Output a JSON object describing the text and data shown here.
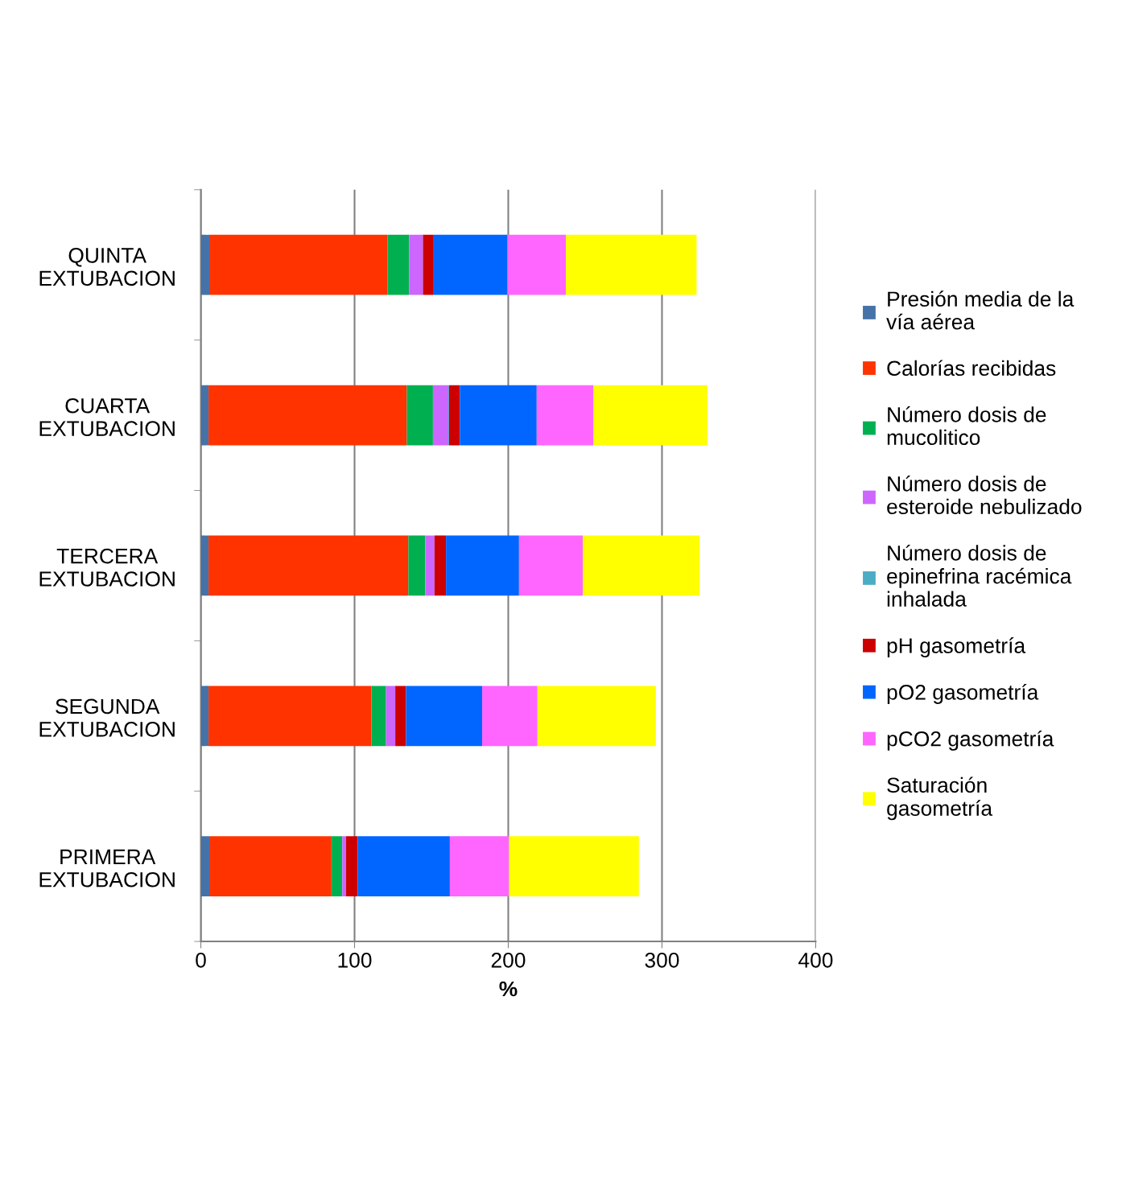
{
  "chart_data": {
    "type": "bar",
    "orientation": "horizontal",
    "stacked": true,
    "xlabel": "%",
    "categories": [
      "QUINTA\nEXTUBACION",
      "CUARTA\nEXTUBACION",
      "TERCERA\nEXTUBACION",
      "SEGUNDA\nEXTUBACION",
      "PRIMERA\nEXTUBACION"
    ],
    "series": [
      {
        "name": "Presión media de la\nvía aérea",
        "color": "#4572a7",
        "values": [
          5.5,
          5,
          5,
          5,
          5.5
        ]
      },
      {
        "name": "Calorías recibidas",
        "color": "#ff3300",
        "values": [
          116,
          129,
          130,
          106,
          79.5
        ]
      },
      {
        "name": "Número dosis de\nmucolitico",
        "color": "#00b050",
        "values": [
          14,
          17,
          11,
          9.5,
          7
        ]
      },
      {
        "name": "Número dosis de\nesteroide nebulizado",
        "color": "#cc66ff",
        "values": [
          9,
          10,
          6,
          6,
          2.5
        ]
      },
      {
        "name": "Número dosis de\nepinefrina racémica\ninhalada",
        "color": "#4bacc6",
        "values": [
          0,
          0.5,
          0,
          0,
          0
        ]
      },
      {
        "name": "pH gasometría",
        "color": "#cc0000",
        "values": [
          7,
          7,
          7.5,
          7,
          7.5
        ]
      },
      {
        "name": "pO2 gasometría",
        "color": "#0066ff",
        "values": [
          48,
          50,
          47.5,
          49.5,
          60
        ]
      },
      {
        "name": "pCO2 gasometría",
        "color": "#ff66ff",
        "values": [
          38,
          37,
          41.5,
          36,
          38.5
        ]
      },
      {
        "name": "Saturación\ngasometría",
        "color": "#ffff00",
        "values": [
          85,
          74,
          76,
          77,
          84.5
        ]
      }
    ],
    "xlim": [
      0,
      400
    ],
    "xticks": [
      0,
      100,
      200,
      300,
      400
    ],
    "grid": "x",
    "legend": "right"
  }
}
